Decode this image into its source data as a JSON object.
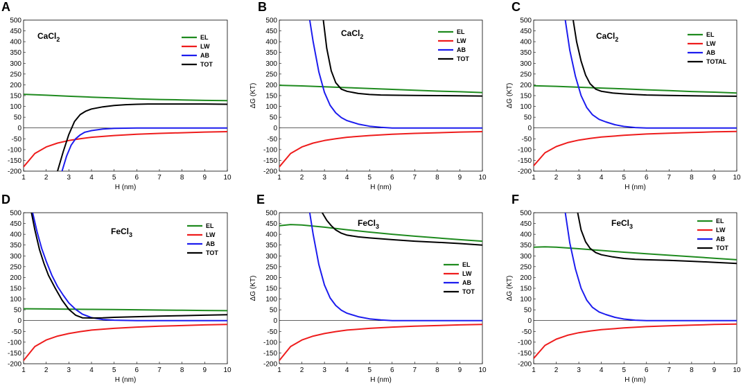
{
  "chart_data": [
    {
      "panel_label": "A",
      "title_base": "CaCl",
      "title_sub": "2",
      "type": "line",
      "xlabel": "H (nm)",
      "ylabel": "",
      "xlim": [
        1,
        10
      ],
      "ylim": [
        -200,
        500
      ],
      "xticks": [
        "1",
        "2",
        "3",
        "4",
        "5",
        "6",
        "7",
        "8",
        "9",
        "10"
      ],
      "yticks": [
        "-200",
        "-150",
        "-100",
        "-50",
        "0",
        "50",
        "100",
        "150",
        "200",
        "250",
        "300",
        "350",
        "400",
        "450",
        "500"
      ],
      "legend_position": "top-right",
      "series": [
        {
          "name": "EL",
          "color": "#1e8a1e",
          "x": [
            1,
            2,
            3,
            4,
            5,
            6,
            7,
            8,
            9,
            10
          ],
          "y": [
            156,
            152,
            147,
            143,
            139,
            135,
            132,
            130,
            128,
            127
          ]
        },
        {
          "name": "LW",
          "color": "#ee1c1c",
          "x": [
            1,
            1.5,
            2,
            2.5,
            3,
            3.5,
            4,
            5,
            6,
            7,
            8,
            9,
            10
          ],
          "y": [
            -180,
            -118,
            -88,
            -70,
            -58,
            -50,
            -43,
            -35,
            -29,
            -25,
            -22,
            -19,
            -17
          ]
        },
        {
          "name": "AB",
          "color": "#1c1cee",
          "x": [
            2.7,
            2.9,
            3.1,
            3.3,
            3.5,
            3.7,
            4,
            4.5,
            5,
            5.5,
            6,
            7,
            8,
            10
          ],
          "y": [
            -200,
            -130,
            -80,
            -50,
            -32,
            -20,
            -12,
            -5,
            -2,
            -1,
            0,
            0,
            0,
            0
          ]
        },
        {
          "name": "TOT",
          "color": "#000000",
          "x": [
            2.5,
            2.75,
            3,
            3.25,
            3.5,
            3.75,
            4,
            4.5,
            5,
            5.5,
            6,
            6.5,
            7,
            8,
            9,
            10
          ],
          "y": [
            -200,
            -110,
            -30,
            30,
            62,
            78,
            88,
            98,
            104,
            108,
            110,
            111,
            111,
            111,
            111,
            110
          ]
        }
      ]
    },
    {
      "panel_label": "B",
      "title_base": "CaCl",
      "title_sub": "2",
      "type": "line",
      "xlabel": "H (nm)",
      "ylabel": "ΔG (KT)",
      "xlim": [
        1,
        10
      ],
      "ylim": [
        -200,
        500
      ],
      "xticks": [
        "1",
        "2",
        "3",
        "4",
        "5",
        "6",
        "7",
        "8",
        "9",
        "10"
      ],
      "yticks": [
        "-200",
        "-150",
        "-100",
        "-50",
        "0",
        "50",
        "100",
        "150",
        "200",
        "250",
        "300",
        "350",
        "400",
        "450",
        "500"
      ],
      "legend_position": "top-right",
      "series": [
        {
          "name": "EL",
          "color": "#1e8a1e",
          "x": [
            1,
            2,
            3,
            4,
            5,
            6,
            7,
            8,
            9,
            10
          ],
          "y": [
            198,
            195,
            191,
            187,
            183,
            179,
            175,
            171,
            168,
            164
          ]
        },
        {
          "name": "LW",
          "color": "#ee1c1c",
          "x": [
            1,
            1.5,
            2,
            2.5,
            3,
            3.5,
            4,
            5,
            6,
            7,
            8,
            9,
            10
          ],
          "y": [
            -180,
            -118,
            -88,
            -70,
            -58,
            -50,
            -43,
            -35,
            -29,
            -25,
            -22,
            -19,
            -17
          ]
        },
        {
          "name": "AB",
          "color": "#1c1cee",
          "x": [
            2.35,
            2.5,
            2.75,
            3,
            3.25,
            3.5,
            3.75,
            4,
            4.5,
            5,
            5.5,
            6,
            7,
            8,
            10
          ],
          "y": [
            500,
            400,
            260,
            165,
            105,
            70,
            48,
            34,
            18,
            8,
            3,
            0,
            0,
            0,
            0
          ]
        },
        {
          "name": "TOT",
          "color": "#000000",
          "x": [
            2.95,
            3.1,
            3.3,
            3.5,
            3.75,
            4,
            4.5,
            5,
            5.5,
            6,
            7,
            8,
            9,
            10
          ],
          "y": [
            500,
            370,
            265,
            210,
            180,
            170,
            160,
            155,
            153,
            152,
            151,
            150,
            149,
            148
          ]
        }
      ]
    },
    {
      "panel_label": "C",
      "title_base": "CaCl",
      "title_sub": "2",
      "type": "line",
      "xlabel": "H (nm)",
      "ylabel": "ΔG (KT)",
      "xlim": [
        1,
        10
      ],
      "ylim": [
        -200,
        500
      ],
      "xticks": [
        "1",
        "2",
        "3",
        "4",
        "5",
        "6",
        "7",
        "8",
        "9",
        "10"
      ],
      "yticks": [
        "-200",
        "-150",
        "-100",
        "-50",
        "0",
        "50",
        "100",
        "150",
        "200",
        "250",
        "300",
        "350",
        "400",
        "450",
        "500"
      ],
      "legend_position": "top-right",
      "series": [
        {
          "name": "EL",
          "color": "#1e8a1e",
          "x": [
            1,
            2,
            3,
            4,
            5,
            6,
            7,
            8,
            9,
            10
          ],
          "y": [
            196,
            193,
            189,
            185,
            181,
            177,
            173,
            169,
            166,
            162
          ]
        },
        {
          "name": "LW",
          "color": "#ee1c1c",
          "x": [
            1,
            1.5,
            2,
            2.5,
            3,
            3.5,
            4,
            5,
            6,
            7,
            8,
            9,
            10
          ],
          "y": [
            -175,
            -115,
            -86,
            -68,
            -56,
            -48,
            -42,
            -34,
            -28,
            -24,
            -21,
            -18,
            -16
          ]
        },
        {
          "name": "AB",
          "color": "#1c1cee",
          "x": [
            2.4,
            2.6,
            2.85,
            3.1,
            3.35,
            3.6,
            3.9,
            4.2,
            4.6,
            5,
            5.5,
            6,
            7,
            8,
            10
          ],
          "y": [
            500,
            360,
            240,
            150,
            95,
            62,
            40,
            28,
            15,
            7,
            2,
            0,
            0,
            0,
            0
          ]
        },
        {
          "name": "TOTAL",
          "color": "#000000",
          "x": [
            2.75,
            2.9,
            3.1,
            3.3,
            3.5,
            3.75,
            4,
            4.5,
            5,
            5.5,
            6,
            7,
            8,
            9,
            10
          ],
          "y": [
            500,
            400,
            310,
            245,
            205,
            180,
            170,
            162,
            158,
            155,
            153,
            151,
            149,
            148,
            147
          ]
        }
      ]
    },
    {
      "panel_label": "D",
      "title_base": "FeCl",
      "title_sub": "3",
      "type": "line",
      "xlabel": "H (nm)",
      "ylabel": "",
      "xlim": [
        1,
        10
      ],
      "ylim": [
        -200,
        500
      ],
      "xticks": [
        "1",
        "2",
        "3",
        "4",
        "5",
        "6",
        "7",
        "8",
        "9",
        "10"
      ],
      "yticks": [
        "-200",
        "-150",
        "-100",
        "-50",
        "0",
        "50",
        "100",
        "150",
        "200",
        "250",
        "300",
        "350",
        "400",
        "450",
        "500"
      ],
      "legend_position": "top-right",
      "series": [
        {
          "name": "EL",
          "color": "#1e8a1e",
          "x": [
            1,
            2,
            3,
            4,
            5,
            6,
            7,
            8,
            9,
            10
          ],
          "y": [
            55,
            54,
            53,
            52,
            51,
            50,
            49,
            48,
            47,
            46
          ]
        },
        {
          "name": "LW",
          "color": "#ee1c1c",
          "x": [
            1,
            1.5,
            2,
            2.5,
            3,
            3.5,
            4,
            5,
            6,
            7,
            8,
            9,
            10
          ],
          "y": [
            -185,
            -120,
            -90,
            -72,
            -60,
            -51,
            -44,
            -36,
            -30,
            -26,
            -23,
            -20,
            -18
          ]
        },
        {
          "name": "AB",
          "color": "#1c1cee",
          "x": [
            1.4,
            1.6,
            1.8,
            2,
            2.25,
            2.5,
            2.75,
            3,
            3.3,
            3.6,
            4,
            4.5,
            5,
            6,
            7,
            8,
            10
          ],
          "y": [
            500,
            410,
            335,
            275,
            210,
            158,
            118,
            82,
            52,
            30,
            14,
            5,
            2,
            0,
            0,
            0,
            0
          ]
        },
        {
          "name": "TOT",
          "color": "#000000",
          "x": [
            1.35,
            1.5,
            1.7,
            1.9,
            2.1,
            2.4,
            2.7,
            3,
            3.3,
            3.6,
            4,
            4.5,
            5,
            6,
            7,
            8,
            9,
            10
          ],
          "y": [
            500,
            420,
            330,
            265,
            210,
            150,
            95,
            52,
            25,
            13,
            12,
            13,
            15,
            18,
            21,
            23,
            25,
            27
          ]
        }
      ]
    },
    {
      "panel_label": "E",
      "title_base": "FeCl",
      "title_sub": "3",
      "type": "line",
      "xlabel": "H (nm)",
      "ylabel": "ΔG (KT)",
      "xlim": [
        1,
        10
      ],
      "ylim": [
        -200,
        500
      ],
      "xticks": [
        "1",
        "2",
        "3",
        "4",
        "5",
        "6",
        "7",
        "8",
        "9",
        "10"
      ],
      "yticks": [
        "-200",
        "-150",
        "-100",
        "-50",
        "0",
        "50",
        "100",
        "150",
        "200",
        "250",
        "300",
        "350",
        "400",
        "450",
        "500"
      ],
      "legend_position": "center-right",
      "series": [
        {
          "name": "EL",
          "color": "#1e8a1e",
          "x": [
            1,
            1.5,
            2,
            3,
            4,
            5,
            6,
            7,
            8,
            9,
            10
          ],
          "y": [
            440,
            445,
            443,
            433,
            421,
            410,
            400,
            391,
            383,
            375,
            368
          ]
        },
        {
          "name": "LW",
          "color": "#ee1c1c",
          "x": [
            1,
            1.5,
            2,
            2.5,
            3,
            3.5,
            4,
            5,
            6,
            7,
            8,
            9,
            10
          ],
          "y": [
            -185,
            -120,
            -90,
            -72,
            -60,
            -51,
            -44,
            -36,
            -30,
            -26,
            -23,
            -20,
            -18
          ]
        },
        {
          "name": "AB",
          "color": "#1c1cee",
          "x": [
            2.35,
            2.5,
            2.75,
            3,
            3.25,
            3.5,
            3.75,
            4,
            4.5,
            5,
            5.5,
            6,
            7,
            8,
            10
          ],
          "y": [
            500,
            400,
            260,
            165,
            105,
            70,
            48,
            34,
            18,
            8,
            3,
            0,
            0,
            0,
            0
          ]
        },
        {
          "name": "TOT",
          "color": "#000000",
          "x": [
            2.9,
            3.1,
            3.3,
            3.5,
            3.75,
            4,
            4.5,
            5,
            6,
            7,
            8,
            9,
            10
          ],
          "y": [
            500,
            465,
            440,
            420,
            405,
            396,
            388,
            383,
            375,
            368,
            363,
            357,
            350
          ]
        }
      ]
    },
    {
      "panel_label": "F",
      "title_base": "FeCl",
      "title_sub": "3",
      "type": "line",
      "xlabel": "H (nm)",
      "ylabel": "ΔG (KT)",
      "xlim": [
        1,
        10
      ],
      "ylim": [
        -200,
        500
      ],
      "xticks": [
        "1",
        "2",
        "3",
        "4",
        "5",
        "6",
        "7",
        "8",
        "9",
        "10"
      ],
      "yticks": [
        "-200",
        "-150",
        "-100",
        "-50",
        "0",
        "50",
        "100",
        "150",
        "200",
        "250",
        "300",
        "350",
        "400",
        "450",
        "500"
      ],
      "legend_position": "top-right",
      "series": [
        {
          "name": "EL",
          "color": "#1e8a1e",
          "x": [
            1,
            1.5,
            2,
            3,
            4,
            5,
            6,
            7,
            8,
            9,
            10
          ],
          "y": [
            340,
            342,
            340,
            333,
            325,
            317,
            310,
            303,
            296,
            289,
            282
          ]
        },
        {
          "name": "LW",
          "color": "#ee1c1c",
          "x": [
            1,
            1.5,
            2,
            2.5,
            3,
            3.5,
            4,
            5,
            6,
            7,
            8,
            9,
            10
          ],
          "y": [
            -175,
            -115,
            -86,
            -68,
            -56,
            -48,
            -42,
            -34,
            -28,
            -24,
            -21,
            -18,
            -16
          ]
        },
        {
          "name": "AB",
          "color": "#1c1cee",
          "x": [
            2.4,
            2.6,
            2.85,
            3.1,
            3.35,
            3.6,
            3.9,
            4.2,
            4.6,
            5,
            5.5,
            6,
            7,
            8,
            10
          ],
          "y": [
            500,
            360,
            240,
            150,
            95,
            62,
            40,
            28,
            15,
            7,
            2,
            0,
            0,
            0,
            0
          ]
        },
        {
          "name": "TOT",
          "color": "#000000",
          "x": [
            2.95,
            3.1,
            3.3,
            3.5,
            3.75,
            4,
            4.5,
            5,
            5.5,
            6,
            7,
            8,
            9,
            10
          ],
          "y": [
            500,
            420,
            365,
            335,
            315,
            305,
            295,
            288,
            284,
            282,
            279,
            275,
            270,
            265
          ]
        }
      ]
    }
  ]
}
